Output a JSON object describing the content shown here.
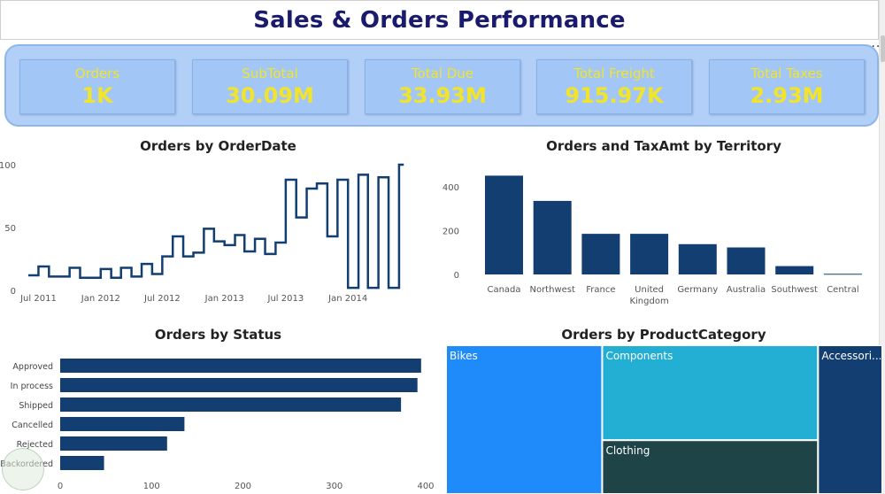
{
  "page_title": "Sales & Orders Performance",
  "kpis": [
    {
      "label": "Orders",
      "value": "1K"
    },
    {
      "label": "SubTotal",
      "value": "30.09M"
    },
    {
      "label": "Total Due",
      "value": "33.93M"
    },
    {
      "label": "Total Freight",
      "value": "915.97K"
    },
    {
      "label": "Total Taxes",
      "value": "2.93M"
    }
  ],
  "more_options": "···",
  "colors": {
    "bar": "#123e72",
    "line": "#123e72",
    "kpi_text": "#f2e42a",
    "title_text": "#1a1a6e",
    "bikes": "#1f8bfb",
    "components": "#23aed4",
    "clothing": "#1e4448",
    "accessories": "#123e72"
  },
  "chart_data": [
    {
      "type": "line",
      "title": "Orders by OrderDate",
      "ylim": [
        0,
        100
      ],
      "yticks": [
        "0",
        "50",
        "100"
      ],
      "x_tick_labels": [
        "Jul 2011",
        "Jan 2012",
        "Jul 2012",
        "Jan 2013",
        "Jul 2013",
        "Jan 2014"
      ],
      "x_range": [
        "2011-06-01",
        "2014-06-30"
      ],
      "series": [
        {
          "points": [
            [
              "2011-06-01",
              12
            ],
            [
              "2011-07-01",
              19
            ],
            [
              "2011-08-01",
              11
            ],
            [
              "2011-09-01",
              11
            ],
            [
              "2011-10-01",
              18
            ],
            [
              "2011-11-01",
              10
            ],
            [
              "2011-12-01",
              10
            ],
            [
              "2012-01-01",
              17
            ],
            [
              "2012-02-01",
              10
            ],
            [
              "2012-03-01",
              18
            ],
            [
              "2012-04-01",
              11
            ],
            [
              "2012-05-01",
              21
            ],
            [
              "2012-06-01",
              13
            ],
            [
              "2012-07-01",
              27
            ],
            [
              "2012-08-01",
              43
            ],
            [
              "2012-09-01",
              27
            ],
            [
              "2012-10-01",
              30
            ],
            [
              "2012-11-01",
              49
            ],
            [
              "2012-12-01",
              39
            ],
            [
              "2013-01-01",
              36
            ],
            [
              "2013-02-01",
              44
            ],
            [
              "2013-03-01",
              31
            ],
            [
              "2013-04-01",
              41
            ],
            [
              "2013-05-01",
              29
            ],
            [
              "2013-06-01",
              38
            ],
            [
              "2013-07-01",
              88
            ],
            [
              "2013-08-01",
              58
            ],
            [
              "2013-09-01",
              81
            ],
            [
              "2013-10-01",
              85
            ],
            [
              "2013-11-01",
              43
            ],
            [
              "2013-12-01",
              88
            ],
            [
              "2014-01-01",
              2
            ],
            [
              "2014-02-01",
              92
            ],
            [
              "2014-03-01",
              2
            ],
            [
              "2014-04-01",
              90
            ],
            [
              "2014-05-01",
              2
            ],
            [
              "2014-06-01",
              100
            ]
          ]
        }
      ]
    },
    {
      "type": "bar",
      "title": "Orders and TaxAmt by Territory",
      "categories": [
        "Canada",
        "Northwest",
        "France",
        "United Kingdom",
        "Germany",
        "Australia",
        "Southwest",
        "Central"
      ],
      "values": [
        450,
        335,
        185,
        185,
        138,
        123,
        38,
        3
      ],
      "ylim": [
        0,
        500
      ],
      "yticks": [
        "0",
        "200",
        "400"
      ]
    },
    {
      "type": "bar",
      "orientation": "horizontal",
      "title": "Orders by Status",
      "categories": [
        "Approved",
        "In process",
        "Shipped",
        "Cancelled",
        "Rejected",
        "Backordered"
      ],
      "values": [
        395,
        391,
        373,
        136,
        117,
        48
      ],
      "xlim": [
        0,
        400
      ],
      "xticks": [
        "0",
        "100",
        "200",
        "300",
        "400"
      ]
    },
    {
      "type": "treemap",
      "title": "Orders by ProductCategory",
      "categories": [
        "Bikes",
        "Components",
        "Clothing",
        "Accessories"
      ],
      "visible_labels": [
        "Bikes",
        "Components",
        "Clothing",
        "Accessori..."
      ],
      "values": [
        340,
        300,
        170,
        140
      ]
    }
  ]
}
